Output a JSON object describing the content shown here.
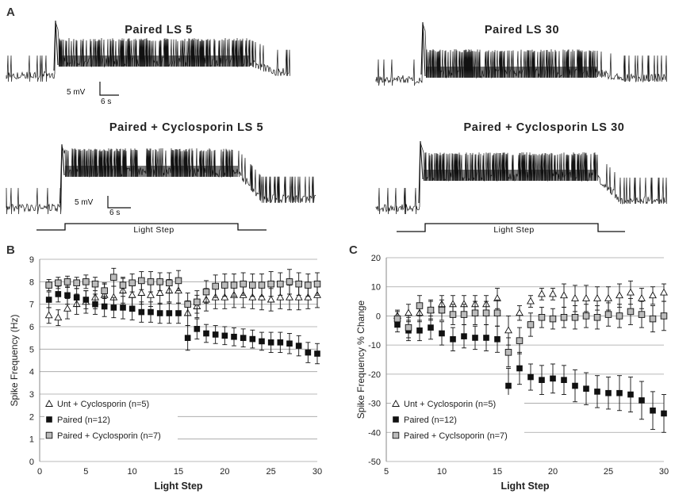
{
  "figure": {
    "panel_a": "A",
    "traces": [
      {
        "title": "Paired LS 5",
        "scale_mv": "5 mV",
        "scale_s": "6 s",
        "seed": 5
      },
      {
        "title": "Paired LS 30",
        "seed": 30
      },
      {
        "title": "Paired + Cyclosporin LS 5",
        "scale_mv": "5 mV",
        "scale_s": "6 s",
        "seed": 105
      },
      {
        "title": "Paired + Cyclosporin LS 30",
        "seed": 130
      }
    ],
    "stimulus_label": "Light Step",
    "colors": {
      "black": "#111111",
      "gray": "#bbbbbb",
      "grid": "#a0a0a0"
    }
  },
  "chart_data": [
    {
      "panel": "B",
      "type": "scatter",
      "title": "",
      "xlabel": "Light Step",
      "ylabel": "Spike Frequency (Hz)",
      "xlim": [
        0,
        30
      ],
      "ylim": [
        0,
        9
      ],
      "xticks": [
        0,
        5,
        10,
        15,
        20,
        25,
        30
      ],
      "yticks": [
        0,
        1,
        2,
        3,
        4,
        5,
        6,
        7,
        8,
        9
      ],
      "grid": true,
      "legend_position": "bottom-left",
      "series": [
        {
          "name": "Unt + Cyclosporin (n=5)",
          "marker": "triangle-open",
          "x": [
            1,
            2,
            3,
            4,
            5,
            6,
            7,
            8,
            9,
            10,
            11,
            12,
            13,
            14,
            15,
            16,
            17,
            18,
            19,
            20,
            21,
            22,
            23,
            24,
            25,
            26,
            27,
            28,
            29,
            30
          ],
          "values": [
            6.5,
            6.4,
            6.8,
            7.0,
            7.1,
            7.3,
            7.4,
            7.3,
            7.6,
            7.4,
            7.5,
            7.4,
            7.5,
            7.6,
            7.6,
            6.6,
            6.9,
            7.2,
            7.3,
            7.3,
            7.4,
            7.4,
            7.3,
            7.3,
            7.2,
            7.3,
            7.3,
            7.3,
            7.3,
            7.4
          ],
          "errors": [
            0.35,
            0.35,
            0.45,
            0.45,
            0.5,
            0.5,
            0.5,
            0.5,
            0.55,
            0.5,
            0.5,
            0.5,
            0.5,
            0.5,
            0.55,
            0.55,
            0.5,
            0.5,
            0.5,
            0.5,
            0.55,
            0.55,
            0.5,
            0.55,
            0.5,
            0.5,
            0.55,
            0.55,
            0.5,
            0.55
          ]
        },
        {
          "name": "Paired (n=12)",
          "marker": "square-filled",
          "x": [
            1,
            2,
            3,
            4,
            5,
            6,
            7,
            8,
            9,
            10,
            11,
            12,
            13,
            14,
            15,
            16,
            17,
            18,
            19,
            20,
            21,
            22,
            23,
            24,
            25,
            26,
            27,
            28,
            29,
            30
          ],
          "values": [
            7.2,
            7.45,
            7.4,
            7.3,
            7.2,
            7.0,
            6.9,
            6.85,
            6.85,
            6.8,
            6.65,
            6.65,
            6.6,
            6.6,
            6.6,
            5.5,
            5.9,
            5.7,
            5.65,
            5.6,
            5.55,
            5.5,
            5.45,
            5.35,
            5.3,
            5.3,
            5.25,
            5.15,
            4.85,
            4.8
          ],
          "errors": [
            0.35,
            0.35,
            0.4,
            0.4,
            0.4,
            0.45,
            0.45,
            0.45,
            0.5,
            0.5,
            0.45,
            0.45,
            0.45,
            0.45,
            0.45,
            0.55,
            0.45,
            0.4,
            0.4,
            0.4,
            0.4,
            0.4,
            0.4,
            0.4,
            0.45,
            0.45,
            0.45,
            0.45,
            0.45,
            0.45
          ]
        },
        {
          "name": "Paired + Cyclosporin (n=7)",
          "marker": "square-gray",
          "x": [
            1,
            2,
            3,
            4,
            5,
            6,
            7,
            8,
            9,
            10,
            11,
            12,
            13,
            14,
            15,
            16,
            17,
            18,
            19,
            20,
            21,
            22,
            23,
            24,
            25,
            26,
            27,
            28,
            29,
            30
          ],
          "values": [
            7.85,
            7.95,
            8.0,
            7.95,
            8.0,
            7.9,
            7.6,
            8.2,
            7.85,
            7.95,
            8.05,
            8.0,
            8.0,
            7.95,
            8.05,
            7.0,
            7.1,
            7.55,
            7.8,
            7.85,
            7.85,
            7.9,
            7.85,
            7.85,
            7.9,
            7.9,
            8.0,
            7.9,
            7.85,
            7.9
          ],
          "errors": [
            0.25,
            0.25,
            0.25,
            0.25,
            0.3,
            0.3,
            0.35,
            0.4,
            0.35,
            0.4,
            0.4,
            0.45,
            0.4,
            0.45,
            0.45,
            0.5,
            0.5,
            0.5,
            0.5,
            0.5,
            0.5,
            0.5,
            0.5,
            0.5,
            0.55,
            0.5,
            0.55,
            0.5,
            0.5,
            0.5
          ]
        }
      ]
    },
    {
      "panel": "C",
      "type": "scatter",
      "title": "",
      "xlabel": "Light Step",
      "ylabel": "Spike Frequency % Change",
      "xlim": [
        5,
        30
      ],
      "ylim": [
        -50,
        20
      ],
      "xticks": [
        5,
        10,
        15,
        20,
        25,
        30
      ],
      "yticks": [
        -50,
        -40,
        -30,
        -20,
        -10,
        0,
        10,
        20
      ],
      "grid": true,
      "legend_position": "bottom-left",
      "series": [
        {
          "name": "Unt + Cyclosporin (n=5)",
          "marker": "triangle-open",
          "x": [
            6,
            7,
            8,
            9,
            10,
            11,
            12,
            13,
            14,
            15,
            16,
            17,
            18,
            19,
            20,
            21,
            22,
            23,
            24,
            25,
            26,
            27,
            28,
            29,
            30
          ],
          "values": [
            0,
            1,
            1,
            2,
            4,
            4,
            4,
            4,
            4,
            6,
            -5,
            1,
            5,
            7.5,
            7.5,
            7,
            6,
            6,
            6,
            6,
            7,
            8,
            6,
            7,
            8
          ],
          "errors": [
            2,
            3,
            3,
            3,
            3,
            3,
            3,
            3,
            3,
            3.5,
            5,
            2.5,
            2,
            2,
            2,
            4,
            4.5,
            4.5,
            4,
            4,
            4,
            4,
            3.5,
            3,
            3
          ]
        },
        {
          "name": "Paired (n=12)",
          "marker": "square-filled",
          "x": [
            6,
            7,
            8,
            9,
            10,
            11,
            12,
            13,
            14,
            15,
            16,
            17,
            18,
            19,
            20,
            21,
            22,
            23,
            24,
            25,
            26,
            27,
            28,
            29,
            30
          ],
          "values": [
            -3,
            -5,
            -5,
            -4,
            -6,
            -8,
            -7,
            -7.5,
            -7.5,
            -8,
            -24,
            -18,
            -21,
            -22,
            -21.5,
            -22,
            -24,
            -25,
            -26,
            -26.5,
            -26.5,
            -27,
            -29,
            -32.5,
            -33.5
          ],
          "errors": [
            2.5,
            3.5,
            3.5,
            4,
            4,
            4,
            4,
            4,
            4.5,
            4.5,
            6,
            5.5,
            4.5,
            5,
            5,
            5,
            5.5,
            5.5,
            5.5,
            5.5,
            6,
            6,
            6.5,
            6.5,
            6.5
          ]
        },
        {
          "name": "Paired + Cyclsoporin (n=7)",
          "marker": "square-gray",
          "x": [
            6,
            7,
            8,
            9,
            10,
            11,
            12,
            13,
            14,
            15,
            16,
            17,
            18,
            19,
            20,
            21,
            22,
            23,
            24,
            25,
            26,
            27,
            28,
            29,
            30
          ],
          "values": [
            -1,
            -4,
            3.5,
            2,
            2,
            0.5,
            0.5,
            1,
            1,
            1,
            -12.5,
            -8.5,
            -3,
            -0.5,
            -1,
            -0.5,
            -0.5,
            0,
            -0.5,
            0.5,
            0,
            1.5,
            0.5,
            -1,
            0
          ],
          "errors": [
            2.5,
            3.5,
            3.5,
            3.5,
            3.5,
            3.5,
            3.5,
            4,
            4,
            4.5,
            5,
            4.5,
            4,
            3.5,
            3.5,
            3.5,
            4,
            4,
            4,
            4,
            4,
            4.5,
            4.5,
            4.5,
            5
          ]
        }
      ]
    }
  ]
}
